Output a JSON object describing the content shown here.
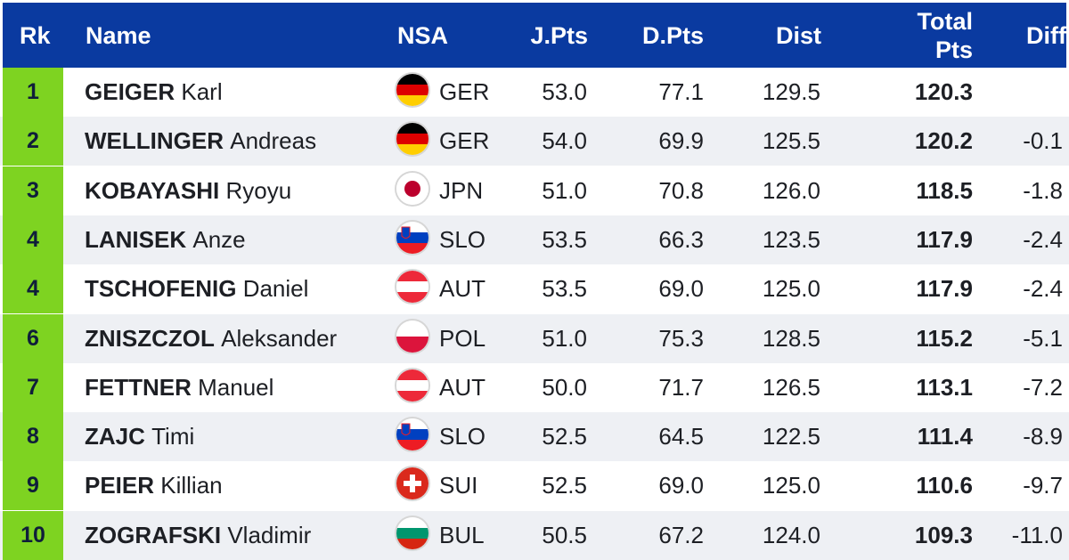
{
  "header": {
    "rk": "Rk",
    "name": "Name",
    "nsa": "NSA",
    "jpts": "J.Pts",
    "dpts": "D.Pts",
    "dist": "Dist",
    "total_line1": "Total",
    "total_line2": "Pts",
    "diff": "Diff"
  },
  "colors": {
    "header_bg": "#0a3aa0",
    "rank_bg": "#7ed321",
    "row_alt": "#eef0f4"
  },
  "rows": [
    {
      "rank": "1",
      "last": "GEIGER",
      "first": "Karl",
      "nsa": "GER",
      "flag": "germany-flag-icon",
      "jpts": "53.0",
      "dpts": "77.1",
      "dist": "129.5",
      "total": "120.3",
      "diff": ""
    },
    {
      "rank": "2",
      "last": "WELLINGER",
      "first": "Andreas",
      "nsa": "GER",
      "flag": "germany-flag-icon",
      "jpts": "54.0",
      "dpts": "69.9",
      "dist": "125.5",
      "total": "120.2",
      "diff": "-0.1"
    },
    {
      "rank": "3",
      "last": "KOBAYASHI",
      "first": "Ryoyu",
      "nsa": "JPN",
      "flag": "japan-flag-icon",
      "jpts": "51.0",
      "dpts": "70.8",
      "dist": "126.0",
      "total": "118.5",
      "diff": "-1.8"
    },
    {
      "rank": "4",
      "last": "LANISEK",
      "first": "Anze",
      "nsa": "SLO",
      "flag": "slovenia-flag-icon",
      "jpts": "53.5",
      "dpts": "66.3",
      "dist": "123.5",
      "total": "117.9",
      "diff": "-2.4"
    },
    {
      "rank": "4",
      "last": "TSCHOFENIG",
      "first": "Daniel",
      "nsa": "AUT",
      "flag": "austria-flag-icon",
      "jpts": "53.5",
      "dpts": "69.0",
      "dist": "125.0",
      "total": "117.9",
      "diff": "-2.4"
    },
    {
      "rank": "6",
      "last": "ZNISZCZOL",
      "first": "Aleksander",
      "nsa": "POL",
      "flag": "poland-flag-icon",
      "jpts": "51.0",
      "dpts": "75.3",
      "dist": "128.5",
      "total": "115.2",
      "diff": "-5.1"
    },
    {
      "rank": "7",
      "last": "FETTNER",
      "first": "Manuel",
      "nsa": "AUT",
      "flag": "austria-flag-icon",
      "jpts": "50.0",
      "dpts": "71.7",
      "dist": "126.5",
      "total": "113.1",
      "diff": "-7.2"
    },
    {
      "rank": "8",
      "last": "ZAJC",
      "first": "Timi",
      "nsa": "SLO",
      "flag": "slovenia-flag-icon",
      "jpts": "52.5",
      "dpts": "64.5",
      "dist": "122.5",
      "total": "111.4",
      "diff": "-8.9"
    },
    {
      "rank": "9",
      "last": "PEIER",
      "first": "Killian",
      "nsa": "SUI",
      "flag": "switzerland-flag-icon",
      "jpts": "52.5",
      "dpts": "69.0",
      "dist": "125.0",
      "total": "110.6",
      "diff": "-9.7"
    },
    {
      "rank": "10",
      "last": "ZOGRAFSKI",
      "first": "Vladimir",
      "nsa": "BUL",
      "flag": "bulgaria-flag-icon",
      "jpts": "50.5",
      "dpts": "67.2",
      "dist": "124.0",
      "total": "109.3",
      "diff": "-11.0"
    }
  ]
}
